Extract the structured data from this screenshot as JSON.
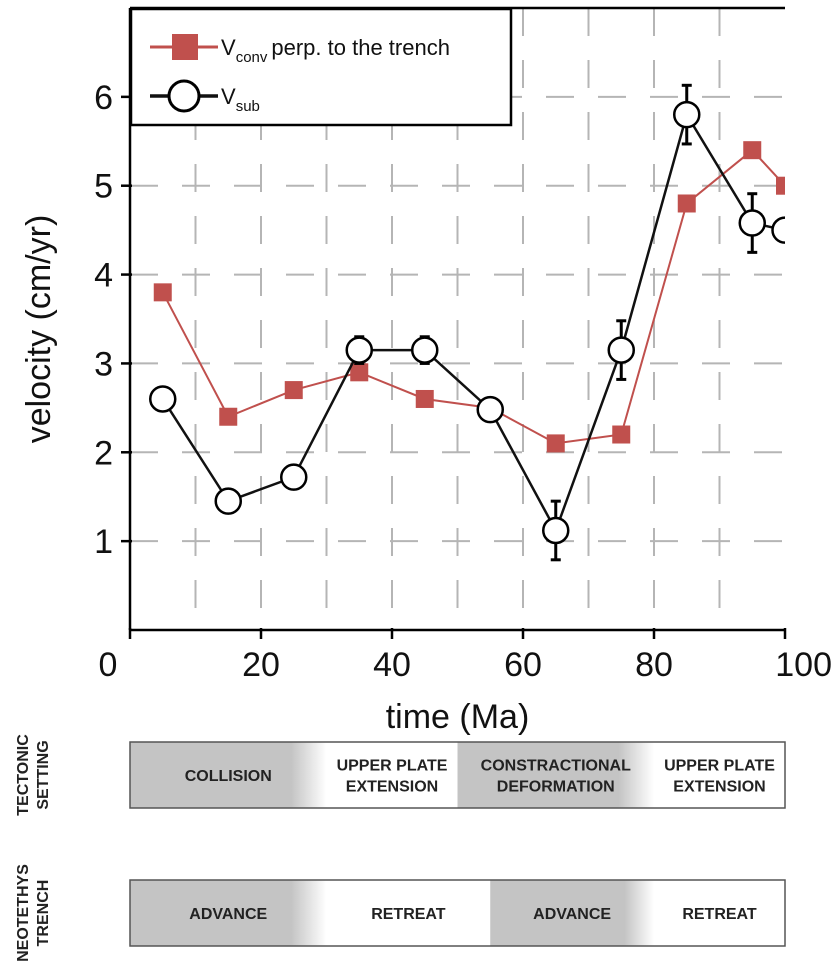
{
  "chart_data": {
    "type": "line",
    "xlabel": "time (Ma)",
    "ylabel": "velocity (cm/yr)",
    "xlim": [
      0,
      100
    ],
    "ylim": [
      0,
      7
    ],
    "xticks": [
      0,
      20,
      40,
      60,
      80,
      100
    ],
    "yticks": [
      1,
      2,
      3,
      4,
      5,
      6
    ],
    "grid": true,
    "legend_position": "top-left",
    "series": [
      {
        "name": "V_conv perp. to the trench",
        "legend_main": "V",
        "legend_sub": "conv",
        "legend_rest": "perp. to the trench",
        "color": "#c0504d",
        "marker": "square",
        "x": [
          5,
          15,
          25,
          35,
          45,
          55,
          65,
          75,
          85,
          95,
          100
        ],
        "values": [
          3.8,
          2.4,
          2.7,
          2.9,
          2.6,
          2.5,
          2.1,
          2.2,
          4.8,
          5.4,
          5.0
        ]
      },
      {
        "name": "V_sub",
        "legend_main": "V",
        "legend_sub": "sub",
        "legend_rest": "",
        "color": "#111111",
        "marker": "circle",
        "x": [
          5,
          15,
          25,
          35,
          45,
          55,
          65,
          75,
          85,
          95,
          100
        ],
        "values": [
          2.6,
          1.45,
          1.72,
          3.15,
          3.15,
          2.48,
          1.12,
          3.15,
          5.8,
          4.58,
          4.5
        ],
        "error": [
          0,
          0.1,
          0.1,
          0.15,
          0.15,
          0.1,
          0.33,
          0.33,
          0.33,
          0.33,
          0
        ]
      }
    ],
    "bands": [
      {
        "label_lines": [
          "TECTONIC",
          "SETTING"
        ],
        "segments": [
          {
            "from": 0,
            "to": 30,
            "lines": [
              "COLLISION"
            ],
            "shade": true
          },
          {
            "from": 30,
            "to": 50,
            "lines": [
              "UPPER PLATE",
              "EXTENSION"
            ],
            "shade": false
          },
          {
            "from": 50,
            "to": 80,
            "lines": [
              "CONSTRACTIONAL",
              "DEFORMATION"
            ],
            "shade": true
          },
          {
            "from": 80,
            "to": 100,
            "lines": [
              "UPPER PLATE",
              "EXTENSION"
            ],
            "shade": false
          }
        ]
      },
      {
        "label_lines": [
          "NEOTETHYS",
          "TRENCH"
        ],
        "segments": [
          {
            "from": 0,
            "to": 30,
            "lines": [
              "ADVANCE"
            ],
            "shade": true
          },
          {
            "from": 30,
            "to": 55,
            "lines": [
              "RETREAT"
            ],
            "shade": false
          },
          {
            "from": 55,
            "to": 80,
            "lines": [
              "ADVANCE"
            ],
            "shade": true
          },
          {
            "from": 80,
            "to": 100,
            "lines": [
              "RETREAT"
            ],
            "shade": false
          }
        ]
      }
    ]
  }
}
